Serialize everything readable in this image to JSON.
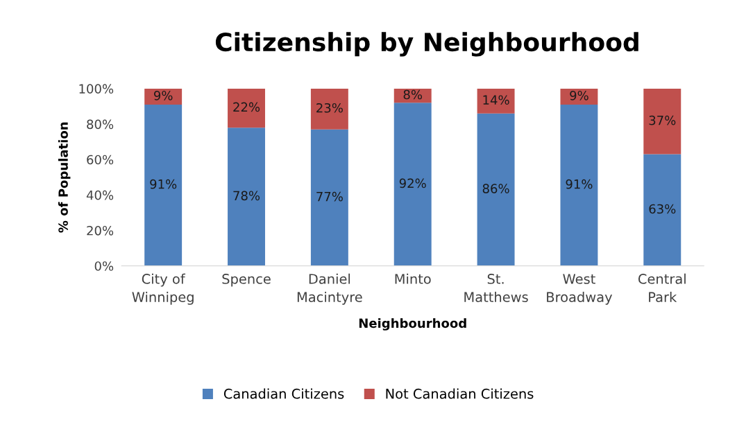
{
  "chart_data": {
    "type": "bar",
    "stacked": true,
    "title": "Citizenship by Neighbourhood",
    "xlabel": "Neighbourhood",
    "ylabel": "% of Population",
    "categories": [
      "City of\nWinnipeg",
      "Spence",
      "Daniel\nMacintyre",
      "Minto",
      "St.\nMatthews",
      "West\nBroadway",
      "Central\nPark"
    ],
    "series": [
      {
        "name": "Canadian Citizens",
        "color": "#4f81bd",
        "values": [
          91,
          78,
          77,
          92,
          86,
          91,
          63
        ],
        "value_labels": [
          "91%",
          "78%",
          "77%",
          "92%",
          "86%",
          "91%",
          "63%"
        ]
      },
      {
        "name": "Not Canadian Citizens",
        "color": "#c0504d",
        "values": [
          9,
          22,
          23,
          8,
          14,
          9,
          37
        ],
        "value_labels": [
          "9%",
          "22%",
          "23%",
          "8%",
          "14%",
          "9%",
          "37%"
        ]
      }
    ],
    "ylim": [
      0,
      100
    ],
    "yticks": [
      {
        "value": 0,
        "label": "0%"
      },
      {
        "value": 20,
        "label": "20%"
      },
      {
        "value": 40,
        "label": "40%"
      },
      {
        "value": 60,
        "label": "60%"
      },
      {
        "value": 80,
        "label": "80%"
      },
      {
        "value": 100,
        "label": "100%"
      }
    ],
    "legend": "bottom",
    "grid": false
  }
}
